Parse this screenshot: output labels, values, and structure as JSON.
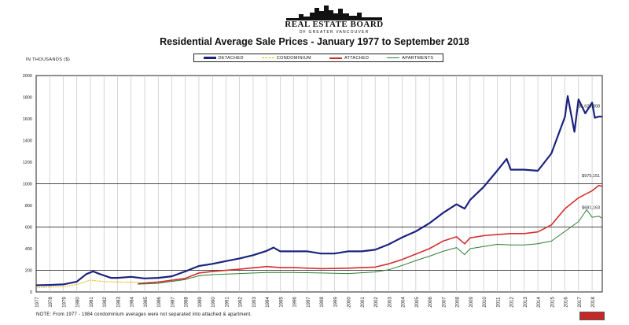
{
  "header": {
    "logo_text": "REAL ESTATE BOARD",
    "logo_subtitle": "OF GREATER VANCOUVER"
  },
  "chart_data": {
    "type": "line",
    "title": "Residential Average Sale Prices  -  January 1977 to September 2018",
    "ylabel": "IN THOUSANDS ($)",
    "xlabel": "",
    "ylim": [
      0,
      2000
    ],
    "yticks": [
      0,
      200,
      400,
      600,
      800,
      1000,
      1200,
      1400,
      1600,
      1800,
      2000
    ],
    "xlim": [
      1977,
      2018.75
    ],
    "xticks": [
      "1977",
      "1978",
      "1979",
      "1980",
      "1981",
      "1982",
      "1983",
      "1984",
      "1985",
      "1986",
      "1987",
      "1988",
      "1989",
      "1990",
      "1991",
      "1992",
      "1993",
      "1994",
      "1995",
      "1996",
      "1997",
      "1998",
      "1999",
      "2000",
      "2001",
      "2002",
      "2003",
      "2004",
      "2005",
      "2006",
      "2007",
      "2008",
      "2009",
      "2010",
      "2011",
      "2012",
      "2013",
      "2014",
      "2015",
      "2016",
      "2017",
      "2018"
    ],
    "legend_position": "top-center",
    "grid": "vertical-year-lines",
    "series": [
      {
        "name": "DETACHED",
        "color": "#1a237e",
        "x": [
          1977,
          1978,
          1979,
          1980,
          1980.7,
          1981.2,
          1981.7,
          1982.5,
          1983,
          1984,
          1985,
          1986,
          1987,
          1988,
          1989,
          1990,
          1991,
          1992,
          1993,
          1994,
          1994.5,
          1995,
          1996,
          1997,
          1998,
          1999,
          2000,
          2001,
          2002,
          2003,
          2004,
          2005,
          2006,
          2007,
          2008,
          2008.6,
          2009,
          2010,
          2011,
          2011.7,
          2012,
          2013,
          2014,
          2015,
          2016,
          2016.2,
          2016.7,
          2017,
          2017.5,
          2018,
          2018.2,
          2018.5,
          2018.75
        ],
        "values": [
          62,
          65,
          70,
          95,
          165,
          190,
          165,
          130,
          130,
          140,
          125,
          130,
          145,
          190,
          240,
          260,
          285,
          310,
          340,
          380,
          410,
          375,
          375,
          375,
          355,
          355,
          375,
          375,
          390,
          440,
          505,
          560,
          635,
          730,
          810,
          770,
          850,
          970,
          1120,
          1230,
          1130,
          1130,
          1120,
          1280,
          1620,
          1810,
          1480,
          1780,
          1650,
          1750,
          1610,
          1620,
          1620
        ]
      },
      {
        "name": "CONDOMINIUM",
        "color": "#e6b800",
        "x": [
          1977,
          1978,
          1979,
          1980,
          1981,
          1982,
          1983,
          1984.5
        ],
        "values": [
          42,
          45,
          48,
          70,
          110,
          95,
          92,
          92
        ]
      },
      {
        "name": "ATTACHED",
        "color": "#d32f2f",
        "x": [
          1984.5,
          1986,
          1988,
          1989,
          1990,
          1992,
          1994,
          1995,
          1996,
          1998,
          2000,
          2002,
          2003,
          2004,
          2005,
          2006,
          2007,
          2008,
          2008.6,
          2009,
          2010,
          2011,
          2012,
          2013,
          2014,
          2015,
          2016,
          2017,
          2018,
          2018.5,
          2018.75
        ],
        "values": [
          78,
          92,
          125,
          175,
          190,
          210,
          235,
          225,
          225,
          215,
          220,
          230,
          260,
          300,
          350,
          400,
          470,
          510,
          445,
          500,
          520,
          530,
          540,
          540,
          555,
          620,
          770,
          870,
          935,
          985,
          975
        ]
      },
      {
        "name": "APARTMENTS",
        "color": "#2e7d32",
        "x": [
          1984.5,
          1986,
          1988,
          1989,
          1990,
          1992,
          1994,
          1996,
          1998,
          2000,
          2002,
          2003,
          2004,
          2005,
          2006,
          2007,
          2008,
          2008.6,
          2009,
          2010,
          2011,
          2012,
          2013,
          2014,
          2015,
          2016,
          2017,
          2017.6,
          2018,
          2018.5,
          2018.75
        ],
        "values": [
          72,
          80,
          115,
          150,
          160,
          170,
          180,
          180,
          175,
          170,
          185,
          205,
          245,
          290,
          330,
          375,
          410,
          345,
          400,
          420,
          440,
          435,
          435,
          445,
          470,
          560,
          650,
          760,
          690,
          700,
          681
        ]
      }
    ],
    "annotations": [
      {
        "text": "$1,620,808",
        "x": 2018.7,
        "y": 1620
      },
      {
        "text": "$975,151",
        "x": 2018.7,
        "y": 975
      },
      {
        "text": "$681,163",
        "x": 2018.7,
        "y": 681
      }
    ],
    "note": "NOTE:  From 1977 - 1984 condominium averages were not separated into attached & apartment."
  }
}
